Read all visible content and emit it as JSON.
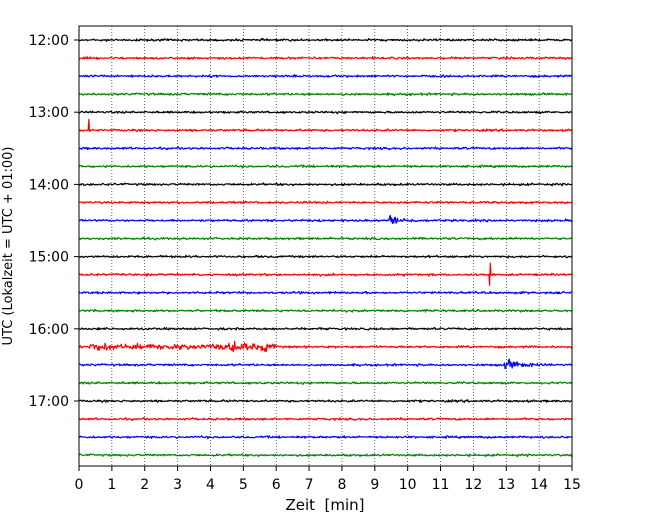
{
  "chart_data": {
    "type": "line",
    "title": "",
    "xlabel": "Zeit  [min]",
    "ylabel": "UTC (Lokalzeit = UTC + 01:00)",
    "xlim": [
      0,
      15
    ],
    "x_ticks": [
      "0",
      "1",
      "2",
      "3",
      "4",
      "5",
      "6",
      "7",
      "8",
      "9",
      "10",
      "11",
      "12",
      "13",
      "14",
      "15"
    ],
    "y_ticks": [
      "12:00",
      "13:00",
      "14:00",
      "15:00",
      "16:00",
      "17:00"
    ],
    "trace_interval_minutes": 15,
    "trace_start": "12:00",
    "trace_count": 24,
    "trace_colors": [
      "#000000",
      "#ff0000",
      "#0000ff",
      "#008000"
    ],
    "grid": {
      "x": true,
      "y": false,
      "style": "dotted"
    },
    "events": [
      {
        "trace": "13:15",
        "x_min": 0.3,
        "kind": "spike"
      },
      {
        "trace": "14:30",
        "x_min": 9.4,
        "x_end_min": 10.5,
        "kind": "burst"
      },
      {
        "trace": "15:15",
        "x_min": 12.5,
        "kind": "spike"
      },
      {
        "trace": "16:15",
        "x_min": 0.3,
        "x_end_min": 6.0,
        "kind": "noise"
      },
      {
        "trace": "16:30",
        "x_min": 12.9,
        "x_end_min": 14.2,
        "kind": "burst"
      }
    ]
  }
}
